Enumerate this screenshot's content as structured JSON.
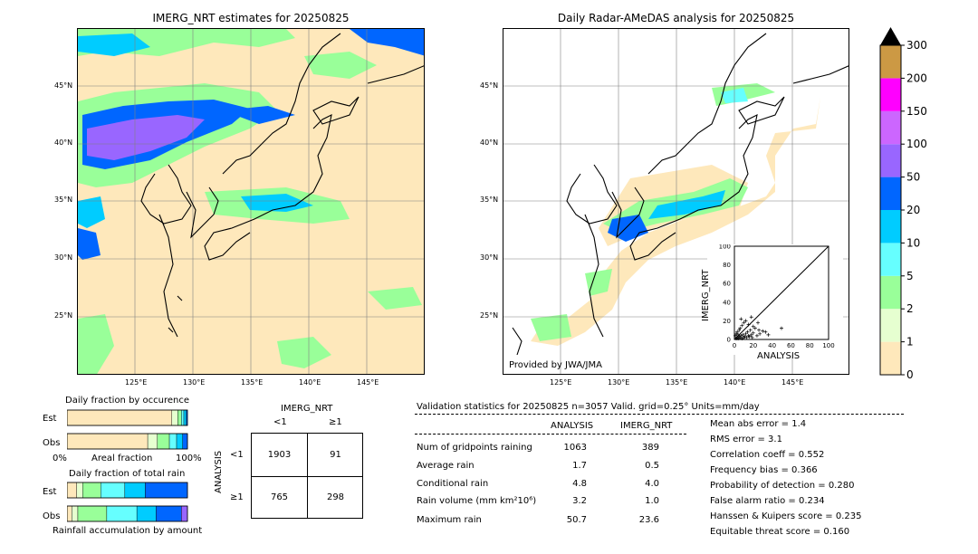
{
  "left_map": {
    "title": "IMERG_NRT estimates for 20250825",
    "lat_labels": [
      "45°N",
      "40°N",
      "35°N",
      "30°N",
      "25°N"
    ],
    "lon_labels": [
      "125°E",
      "130°E",
      "135°E",
      "140°E",
      "145°E"
    ]
  },
  "right_map": {
    "title": "Daily Radar-AMeDAS analysis for 20250825",
    "lat_labels": [
      "45°N",
      "40°N",
      "35°N",
      "30°N",
      "25°N"
    ],
    "lon_labels": [
      "125°E",
      "130°E",
      "135°E",
      "140°E",
      "145°E"
    ],
    "provider": "Provided by JWA/JMA"
  },
  "scatter": {
    "ylabel": "IMERG_NRT",
    "xlabel": "ANALYSIS",
    "ticks": [
      "0",
      "20",
      "40",
      "60",
      "80",
      "100"
    ]
  },
  "colorbar": {
    "levels": [
      "0",
      "1",
      "2",
      "5",
      "10",
      "20",
      "50",
      "100",
      "150",
      "200",
      "300"
    ],
    "colors": [
      "#fee8bb",
      "#e6ffd0",
      "#99ff99",
      "#66ffff",
      "#00ccff",
      "#0066ff",
      "#9966ff",
      "#cc66ff",
      "#ff00ff",
      "#cc9944"
    ]
  },
  "occurrence": {
    "title": "Daily fraction by occurence",
    "rows": [
      "Est",
      "Obs"
    ],
    "axis_left": "0%",
    "axis_mid": "Areal fraction",
    "axis_right": "100%"
  },
  "total_rain": {
    "title": "Daily fraction of total rain",
    "rows": [
      "Est",
      "Obs"
    ],
    "axis_label": "Rainfall accumulation by amount"
  },
  "contingency": {
    "col_title": "IMERG_NRT",
    "col_lt": "<1",
    "col_ge": "≥1",
    "row_title": "ANALYSIS",
    "row_lt": "<1",
    "row_ge": "≥1",
    "cells": [
      "1903",
      "91",
      "765",
      "298"
    ]
  },
  "validation": {
    "header": "Validation statistics for 20250825  n=3057 Valid. grid=0.25° Units=mm/day",
    "col_analysis": "ANALYSIS",
    "col_imerg": "IMERG_NRT",
    "rows": [
      {
        "label": "Num of gridpoints raining",
        "analysis": "1063",
        "imerg": "389"
      },
      {
        "label": "Average rain",
        "analysis": "1.7",
        "imerg": "0.5"
      },
      {
        "label": "Conditional rain",
        "analysis": "4.8",
        "imerg": "4.0"
      },
      {
        "label": "Rain volume (mm km²10⁶)",
        "analysis": "3.2",
        "imerg": "1.0"
      },
      {
        "label": "Maximum rain",
        "analysis": "50.7",
        "imerg": "23.6"
      }
    ],
    "scores": [
      "Mean abs error =    1.4",
      "RMS error =    3.1",
      "Correlation coeff =  0.552",
      "Frequency bias =  0.366",
      "Probability of detection =  0.280",
      "False alarm ratio =  0.234",
      "Hanssen & Kuipers score =  0.235",
      "Equitable threat score =  0.160"
    ]
  },
  "chart_data": [
    {
      "type": "scatter",
      "xlabel": "ANALYSIS",
      "ylabel": "IMERG_NRT",
      "xlim": [
        0,
        100
      ],
      "ylim": [
        0,
        100
      ],
      "points": [
        [
          2,
          1
        ],
        [
          3,
          2
        ],
        [
          4,
          1
        ],
        [
          5,
          3
        ],
        [
          6,
          2
        ],
        [
          7,
          4
        ],
        [
          8,
          1
        ],
        [
          9,
          5
        ],
        [
          10,
          2
        ],
        [
          11,
          3
        ],
        [
          12,
          6
        ],
        [
          13,
          2
        ],
        [
          14,
          8
        ],
        [
          15,
          4
        ],
        [
          16,
          3
        ],
        [
          17,
          10
        ],
        [
          18,
          5
        ],
        [
          19,
          2
        ],
        [
          20,
          7
        ],
        [
          22,
          12
        ],
        [
          24,
          4
        ],
        [
          25,
          18
        ],
        [
          27,
          6
        ],
        [
          30,
          9
        ],
        [
          1,
          4
        ],
        [
          2,
          6
        ],
        [
          3,
          8
        ],
        [
          4,
          5
        ],
        [
          5,
          10
        ],
        [
          6,
          12
        ],
        [
          8,
          15
        ],
        [
          10,
          18
        ],
        [
          12,
          20
        ],
        [
          7,
          22
        ],
        [
          15,
          16
        ],
        [
          18,
          24
        ],
        [
          20,
          14
        ],
        [
          26,
          10
        ],
        [
          33,
          8
        ],
        [
          36,
          5
        ],
        [
          50,
          12
        ]
      ]
    },
    {
      "type": "bar",
      "title": "Daily fraction by occurence",
      "categories": [
        "Est",
        "Obs"
      ],
      "series": [
        {
          "values": [
            0.87,
            0.67
          ]
        },
        {
          "values": [
            0.05,
            0.08
          ]
        },
        {
          "values": [
            0.03,
            0.1
          ]
        },
        {
          "values": [
            0.02,
            0.06
          ]
        },
        {
          "values": [
            0.02,
            0.05
          ]
        },
        {
          "values": [
            0.01,
            0.04
          ]
        }
      ]
    },
    {
      "type": "bar",
      "title": "Daily fraction of total rain",
      "categories": [
        "Est",
        "Obs"
      ],
      "series": [
        {
          "values": [
            0.08,
            0.04
          ]
        },
        {
          "values": [
            0.05,
            0.05
          ]
        },
        {
          "values": [
            0.15,
            0.24
          ]
        },
        {
          "values": [
            0.2,
            0.25
          ]
        },
        {
          "values": [
            0.17,
            0.16
          ]
        },
        {
          "values": [
            0.35,
            0.21
          ]
        },
        {
          "values": [
            0.0,
            0.05
          ]
        }
      ]
    }
  ]
}
